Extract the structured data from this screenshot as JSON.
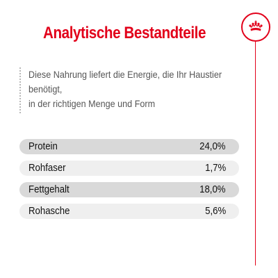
{
  "header": {
    "title": "Analytische Bestandteile"
  },
  "brand": {
    "icon": "crown-icon",
    "accent_color": "#e2001a"
  },
  "intro": {
    "lines": [
      "Diese Nahrung liefert die Energie, die Ihr Haustier",
      "benötigt,",
      "in der richtigen Menge und Form"
    ]
  },
  "nutrients": [
    {
      "label": "Protein",
      "value": "24,0%"
    },
    {
      "label": "Rohfaser",
      "value": "1,7%"
    },
    {
      "label": "Fettgehalt",
      "value": "18,0%"
    },
    {
      "label": "Rohasche",
      "value": "5,6%"
    }
  ],
  "row_colors": {
    "dark": "#d9d9d9",
    "light": "#efefef"
  }
}
